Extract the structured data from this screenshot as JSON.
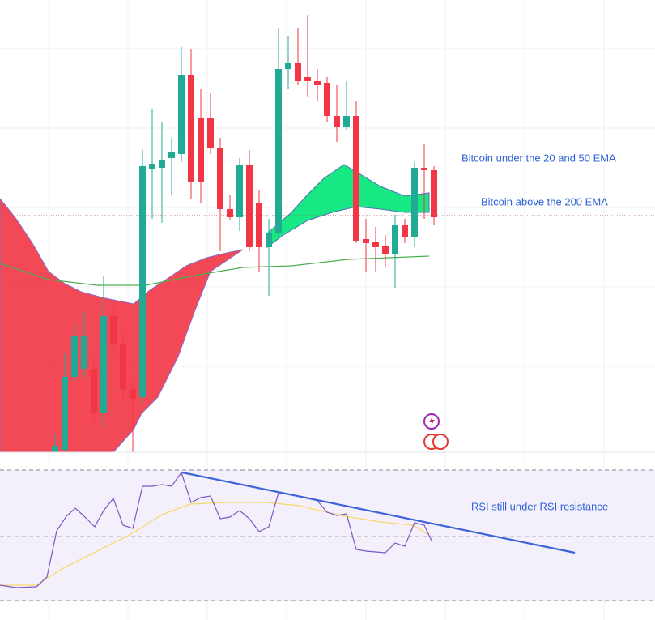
{
  "chart_data": {
    "type": "candlestick",
    "annotations": [
      "Bitcoin under the 20 and 50 EMA",
      "Bitcoin above the 200 EMA",
      "RSI still under RSI resistance"
    ],
    "ylim": [
      0,
      558
    ],
    "up_color": "#22ab94",
    "down_color": "#f23645",
    "open": [
      0,
      3,
      93,
      103,
      103,
      48,
      168,
      133,
      78,
      68,
      350,
      351,
      363,
      368,
      466,
      413,
      413,
      375,
      300,
      290,
      355,
      308,
      253,
      271,
      473,
      480,
      463,
      458,
      455,
      415,
      401,
      415,
      263,
      260,
      255,
      245,
      280,
      265,
      351,
      348
    ],
    "high": [
      23,
      123,
      158,
      173,
      118,
      218,
      188,
      148,
      88,
      373,
      423,
      408,
      388,
      500,
      498,
      448,
      443,
      388,
      318,
      363,
      373,
      323,
      288,
      523,
      513,
      523,
      540,
      473,
      463,
      453,
      458,
      433,
      288,
      278,
      268,
      293,
      288,
      358,
      380,
      353
    ],
    "low": [
      0,
      0,
      88,
      93,
      38,
      30,
      118,
      68,
      0,
      58,
      288,
      283,
      318,
      358,
      313,
      308,
      368,
      248,
      286,
      273,
      248,
      223,
      193,
      263,
      448,
      453,
      438,
      433,
      408,
      383,
      398,
      258,
      223,
      223,
      228,
      203,
      258,
      253,
      288,
      280
    ],
    "close": [
      8,
      93,
      143,
      143,
      48,
      168,
      133,
      78,
      66,
      353,
      356,
      361,
      370,
      466,
      333,
      333,
      375,
      300,
      290,
      355,
      253,
      253,
      271,
      473,
      480,
      458,
      458,
      453,
      415,
      401,
      415,
      261,
      258,
      253,
      245,
      280,
      265,
      351,
      348,
      290
    ]
  }
}
